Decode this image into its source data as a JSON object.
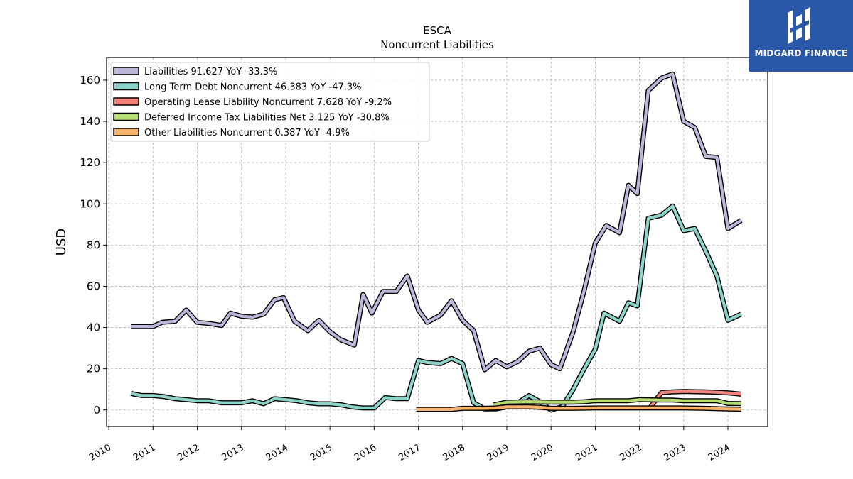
{
  "brand": {
    "name": "MIDGARD FINANCE",
    "color": "#2b59aa"
  },
  "chart_data": {
    "type": "line",
    "title": "ESCA",
    "subtitle": "Noncurrent  Liabilities",
    "ylabel": "USD",
    "xlabel": "",
    "ylim": [
      -8,
      171
    ],
    "xlim": [
      2009.95,
      2024.9
    ],
    "yticks": [
      0,
      20,
      40,
      60,
      80,
      100,
      120,
      140,
      160
    ],
    "xticks": [
      2010,
      2011,
      2012,
      2013,
      2014,
      2015,
      2016,
      2017,
      2018,
      2019,
      2020,
      2021,
      2022,
      2023,
      2024
    ],
    "grid": true,
    "legend_position": "top-left",
    "series": [
      {
        "name": "Liabilities",
        "legend": "Liabilities  91.627 YoY -33.3%",
        "color": "#bcb7d9",
        "points": [
          [
            2010.5,
            40.5
          ],
          [
            2011.0,
            40.5
          ],
          [
            2011.2,
            42.5
          ],
          [
            2011.5,
            43
          ],
          [
            2011.75,
            48.5
          ],
          [
            2012.0,
            42.5
          ],
          [
            2012.25,
            42
          ],
          [
            2012.55,
            41
          ],
          [
            2012.75,
            47
          ],
          [
            2013.0,
            45.5
          ],
          [
            2013.25,
            45
          ],
          [
            2013.5,
            46.5
          ],
          [
            2013.75,
            53.5
          ],
          [
            2013.95,
            54.5
          ],
          [
            2014.2,
            43
          ],
          [
            2014.5,
            38.5
          ],
          [
            2014.75,
            43.5
          ],
          [
            2015.0,
            38
          ],
          [
            2015.25,
            34
          ],
          [
            2015.55,
            31.5
          ],
          [
            2015.75,
            56
          ],
          [
            2015.95,
            47
          ],
          [
            2016.2,
            57.5
          ],
          [
            2016.5,
            57.5
          ],
          [
            2016.75,
            65
          ],
          [
            2017.0,
            48.5
          ],
          [
            2017.2,
            42.5
          ],
          [
            2017.5,
            46
          ],
          [
            2017.75,
            53
          ],
          [
            2018.0,
            43.5
          ],
          [
            2018.25,
            38.5
          ],
          [
            2018.5,
            19.5
          ],
          [
            2018.75,
            24
          ],
          [
            2019.0,
            21
          ],
          [
            2019.25,
            23.5
          ],
          [
            2019.5,
            28.5
          ],
          [
            2019.75,
            30
          ],
          [
            2020.0,
            22
          ],
          [
            2020.2,
            20
          ],
          [
            2020.5,
            38
          ],
          [
            2020.75,
            58
          ],
          [
            2021.0,
            81
          ],
          [
            2021.25,
            89.5
          ],
          [
            2021.55,
            86
          ],
          [
            2021.75,
            109
          ],
          [
            2021.95,
            105
          ],
          [
            2022.2,
            155
          ],
          [
            2022.5,
            161
          ],
          [
            2022.75,
            163
          ],
          [
            2023.0,
            140
          ],
          [
            2023.25,
            137
          ],
          [
            2023.5,
            123
          ],
          [
            2023.75,
            122.5
          ],
          [
            2024.0,
            88
          ],
          [
            2024.3,
            92
          ]
        ]
      },
      {
        "name": "Long Term Debt Noncurrent",
        "legend": "Long Term Debt Noncurrent  46.383 YoY -47.3%",
        "color": "#8dd3c7",
        "points": [
          [
            2010.5,
            8
          ],
          [
            2010.75,
            7
          ],
          [
            2011.0,
            7
          ],
          [
            2011.25,
            6.5
          ],
          [
            2011.5,
            5.5
          ],
          [
            2011.75,
            5
          ],
          [
            2012.0,
            4.5
          ],
          [
            2012.25,
            4.5
          ],
          [
            2012.55,
            3.5
          ],
          [
            2012.75,
            3.5
          ],
          [
            2013.0,
            3.5
          ],
          [
            2013.25,
            4.5
          ],
          [
            2013.5,
            3
          ],
          [
            2013.75,
            5.5
          ],
          [
            2014.0,
            5
          ],
          [
            2014.25,
            4.5
          ],
          [
            2014.5,
            3.5
          ],
          [
            2014.75,
            3
          ],
          [
            2015.0,
            3
          ],
          [
            2015.25,
            2.5
          ],
          [
            2015.5,
            1.5
          ],
          [
            2015.75,
            1
          ],
          [
            2016.0,
            1
          ],
          [
            2016.25,
            6
          ],
          [
            2016.5,
            5.5
          ],
          [
            2016.75,
            5.5
          ],
          [
            2017.0,
            24
          ],
          [
            2017.2,
            23
          ],
          [
            2017.5,
            22.5
          ],
          [
            2017.75,
            25
          ],
          [
            2018.0,
            22.5
          ],
          [
            2018.25,
            3.5
          ],
          [
            2018.5,
            0.5
          ],
          [
            2018.75,
            0.5
          ],
          [
            2019.0,
            1.5
          ],
          [
            2019.25,
            3.5
          ],
          [
            2019.5,
            7
          ],
          [
            2019.75,
            4
          ],
          [
            2020.0,
            0
          ],
          [
            2020.25,
            1.5
          ],
          [
            2020.5,
            10
          ],
          [
            2020.75,
            20
          ],
          [
            2021.0,
            29.5
          ],
          [
            2021.2,
            47
          ],
          [
            2021.55,
            43
          ],
          [
            2021.75,
            52
          ],
          [
            2021.95,
            50.5
          ],
          [
            2022.2,
            93
          ],
          [
            2022.5,
            94.5
          ],
          [
            2022.75,
            99
          ],
          [
            2023.0,
            87
          ],
          [
            2023.25,
            88
          ],
          [
            2023.5,
            77
          ],
          [
            2023.75,
            65
          ],
          [
            2024.0,
            43.5
          ],
          [
            2024.3,
            46.5
          ]
        ]
      },
      {
        "name": "Operating Lease Liability Noncurrent",
        "legend": "Operating Lease Liability Noncurrent  7.628 YoY -9.2%",
        "color": "#f4847a",
        "points": [
          [
            2022.25,
            1.5
          ],
          [
            2022.5,
            8.5
          ],
          [
            2022.75,
            8.8
          ],
          [
            2023.0,
            9
          ],
          [
            2023.5,
            8.8
          ],
          [
            2023.75,
            8.6
          ],
          [
            2024.0,
            8.3
          ],
          [
            2024.3,
            7.7
          ]
        ]
      },
      {
        "name": "Deferred Income Tax Liabilities Net",
        "legend": "Deferred Income Tax Liabilities Net  3.125 YoY -30.8%",
        "color": "#b4dd72",
        "points": [
          [
            2018.7,
            2.5
          ],
          [
            2019.0,
            3.8
          ],
          [
            2019.5,
            4
          ],
          [
            2020.0,
            3.8
          ],
          [
            2020.5,
            3.8
          ],
          [
            2020.75,
            4
          ],
          [
            2021.0,
            4.5
          ],
          [
            2021.5,
            4.5
          ],
          [
            2021.75,
            4.5
          ],
          [
            2022.0,
            5
          ],
          [
            2022.5,
            4.8
          ],
          [
            2022.75,
            4.8
          ],
          [
            2023.0,
            4.5
          ],
          [
            2023.5,
            4.5
          ],
          [
            2023.75,
            4.5
          ],
          [
            2024.0,
            3.2
          ],
          [
            2024.3,
            3.1
          ]
        ]
      },
      {
        "name": "Other Liabilities Noncurrent",
        "legend": "Other Liabilities Noncurrent  0.387 YoY -4.9%",
        "color": "#fbb36a",
        "points": [
          [
            2016.95,
            0.3
          ],
          [
            2017.25,
            0.3
          ],
          [
            2017.75,
            0.3
          ],
          [
            2018.0,
            0.8
          ],
          [
            2018.5,
            0.8
          ],
          [
            2018.75,
            1
          ],
          [
            2019.0,
            1.5
          ],
          [
            2019.5,
            1.5
          ],
          [
            2019.75,
            1.3
          ],
          [
            2020.0,
            0.8
          ],
          [
            2020.5,
            0.8
          ],
          [
            2021.0,
            1
          ],
          [
            2021.5,
            1
          ],
          [
            2022.0,
            1
          ],
          [
            2022.5,
            1
          ],
          [
            2023.0,
            1
          ],
          [
            2023.5,
            0.8
          ],
          [
            2024.0,
            0.5
          ],
          [
            2024.3,
            0.4
          ]
        ]
      }
    ]
  }
}
